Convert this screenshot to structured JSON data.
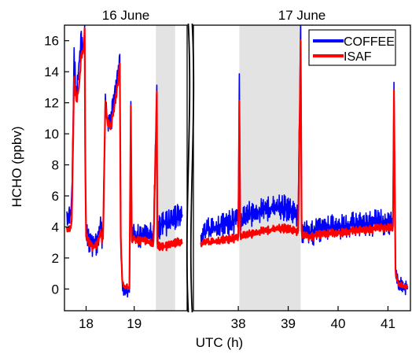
{
  "chart_data": {
    "type": "line",
    "ylabel": "HCHO (ppbv)",
    "xlabel": "UTC (h)",
    "ylim": [
      -1.4,
      17.0
    ],
    "yticks": [
      0,
      2,
      4,
      6,
      8,
      10,
      12,
      14,
      16
    ],
    "legend": {
      "placement": "top-right",
      "entries": [
        "COFFEE",
        "ISAF"
      ]
    },
    "colors": {
      "COFFEE": "#0000ff",
      "ISAF": "#ff0000",
      "shade": "#e3e3e3"
    },
    "panels": [
      {
        "title": "16 June",
        "xlim": [
          17.55,
          20.1
        ],
        "xticks": [
          18,
          19
        ],
        "shaded": [
          [
            19.45,
            19.85
          ]
        ],
        "series": [
          {
            "name": "COFFEE",
            "x": [
              17.6,
              17.65,
              17.7,
              17.75,
              17.8,
              17.85,
              17.9,
              17.95,
              17.97,
              17.98,
              18.0,
              18.05,
              18.1,
              18.15,
              18.2,
              18.25,
              18.3,
              18.35,
              18.4,
              18.45,
              18.47,
              18.5,
              18.55,
              18.6,
              18.65,
              18.7,
              18.72,
              18.75,
              18.8,
              18.85,
              18.9,
              18.93,
              18.95,
              19.0,
              19.1,
              19.2,
              19.3,
              19.4,
              19.47,
              19.48,
              19.5,
              19.6,
              19.7,
              19.8,
              19.9,
              20.0
            ],
            "y": [
              5.0,
              4.5,
              5.5,
              15.0,
              12.0,
              14.5,
              16.0,
              15.5,
              17.0,
              9.0,
              3.5,
              3.2,
              2.8,
              2.7,
              2.9,
              3.2,
              4.0,
              3.0,
              12.2,
              10.5,
              11.0,
              10.5,
              11.5,
              12.5,
              13.5,
              15.0,
              3.5,
              0.5,
              -0.2,
              0.0,
              -0.3,
              12.0,
              3.0,
              3.5,
              3.3,
              3.6,
              3.4,
              3.5,
              12.8,
              3.5,
              4.0,
              4.2,
              4.3,
              4.5,
              4.6,
              4.8
            ]
          },
          {
            "name": "ISAF",
            "x": [
              17.6,
              17.65,
              17.7,
              17.75,
              17.8,
              17.85,
              17.9,
              17.95,
              17.97,
              17.98,
              18.0,
              18.05,
              18.1,
              18.15,
              18.2,
              18.25,
              18.3,
              18.35,
              18.4,
              18.45,
              18.47,
              18.5,
              18.55,
              18.6,
              18.65,
              18.7,
              18.72,
              18.75,
              18.8,
              18.85,
              18.9,
              18.93,
              18.95,
              19.0,
              19.1,
              19.2,
              19.3,
              19.4,
              19.47,
              19.48,
              19.5,
              19.6,
              19.7,
              19.8,
              19.9,
              20.0
            ],
            "y": [
              4.0,
              3.8,
              4.2,
              13.5,
              12.0,
              13.0,
              15.0,
              15.5,
              16.8,
              9.0,
              3.4,
              3.1,
              2.8,
              2.6,
              2.8,
              3.1,
              3.6,
              3.0,
              12.0,
              10.5,
              10.8,
              10.3,
              11.0,
              12.0,
              13.0,
              14.5,
              3.3,
              0.6,
              0.1,
              0.2,
              0.0,
              11.8,
              3.0,
              3.2,
              3.1,
              3.2,
              3.0,
              2.9,
              12.6,
              3.0,
              2.8,
              2.7,
              2.8,
              2.9,
              3.0,
              3.0
            ]
          }
        ]
      },
      {
        "title": "17 June",
        "xlim": [
          37.1,
          41.45
        ],
        "xticks": [
          38,
          39,
          40,
          41
        ],
        "shaded": [
          [
            38.02,
            39.25
          ]
        ],
        "series": [
          {
            "name": "COFFEE",
            "x": [
              37.25,
              37.4,
              37.6,
              37.8,
              38.0,
              38.02,
              38.04,
              38.2,
              38.4,
              38.6,
              38.8,
              39.0,
              39.2,
              39.25,
              39.27,
              39.4,
              39.6,
              39.8,
              40.0,
              40.2,
              40.4,
              40.6,
              40.8,
              41.0,
              41.1,
              41.12,
              41.15,
              41.2,
              41.3,
              41.4
            ],
            "y": [
              3.5,
              3.8,
              4.0,
              4.2,
              4.5,
              13.8,
              4.4,
              4.8,
              5.0,
              5.2,
              5.3,
              5.2,
              4.8,
              16.6,
              3.8,
              3.5,
              3.8,
              4.0,
              4.0,
              4.1,
              4.2,
              4.2,
              4.3,
              4.3,
              4.2,
              13.2,
              1.5,
              0.5,
              0.2,
              0.0
            ]
          },
          {
            "name": "ISAF",
            "x": [
              37.25,
              37.4,
              37.6,
              37.8,
              38.0,
              38.02,
              38.04,
              38.2,
              38.4,
              38.6,
              38.8,
              39.0,
              39.2,
              39.25,
              39.27,
              39.4,
              39.6,
              39.8,
              40.0,
              40.2,
              40.4,
              40.6,
              40.8,
              41.0,
              41.1,
              41.12,
              41.15,
              41.2,
              41.3,
              41.4
            ],
            "y": [
              3.0,
              3.0,
              3.1,
              3.2,
              3.3,
              12.1,
              3.4,
              3.5,
              3.7,
              3.8,
              3.9,
              3.9,
              3.7,
              15.8,
              3.6,
              3.3,
              3.5,
              3.6,
              3.6,
              3.7,
              3.8,
              3.8,
              3.9,
              4.0,
              3.9,
              12.8,
              1.2,
              0.4,
              0.2,
              0.1
            ]
          }
        ]
      }
    ]
  }
}
